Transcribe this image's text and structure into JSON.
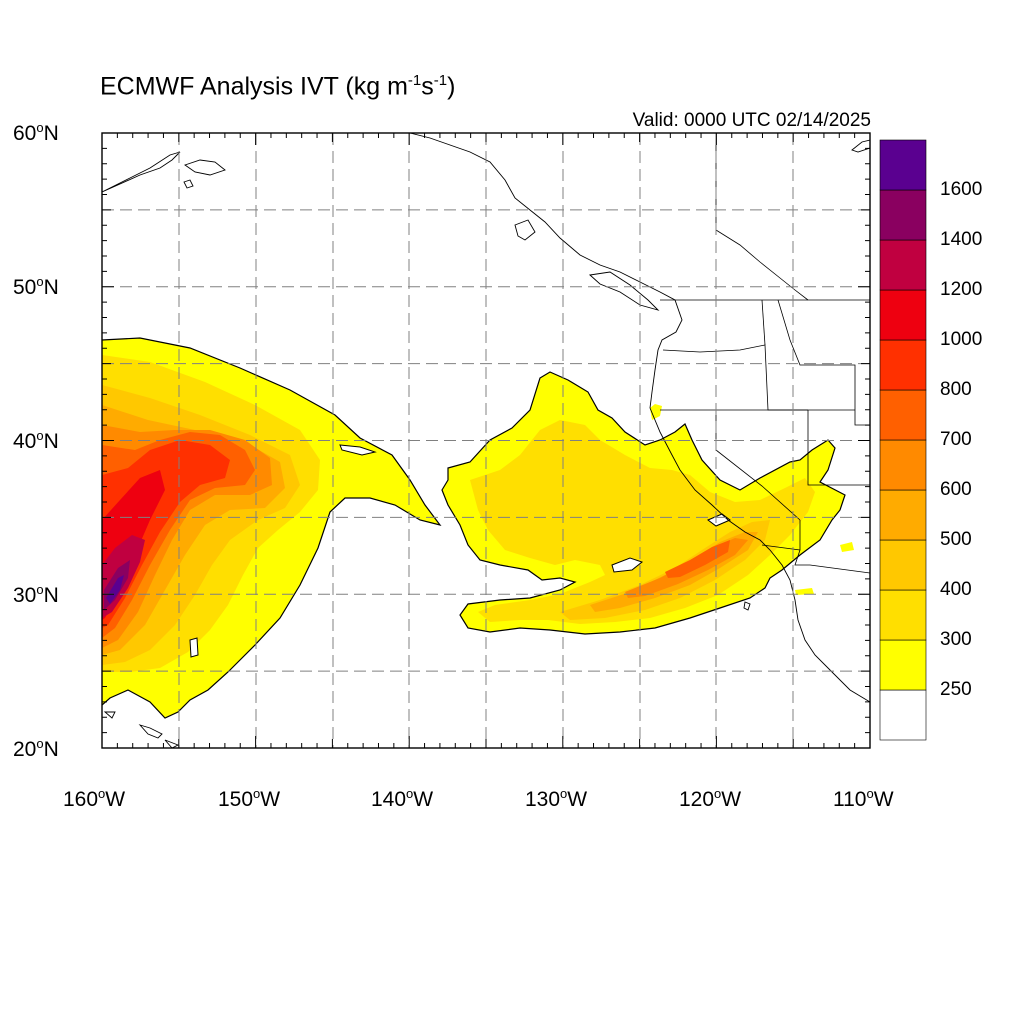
{
  "title": {
    "main": "ECMWF Analysis IVT (kg m",
    "exp1": "-1",
    "mid": "s",
    "exp2": "-1",
    "end": ")"
  },
  "valid_time": "Valid: 0000 UTC 02/14/2025",
  "axes": {
    "lat_labels": [
      {
        "base": "60",
        "sup": "o",
        "suffix": "N"
      },
      {
        "base": "50",
        "sup": "o",
        "suffix": "N"
      },
      {
        "base": "40",
        "sup": "o",
        "suffix": "N"
      },
      {
        "base": "30",
        "sup": "o",
        "suffix": "N"
      },
      {
        "base": "20",
        "sup": "o",
        "suffix": "N"
      }
    ],
    "lon_labels": [
      {
        "base": "160",
        "sup": "o",
        "suffix": "W"
      },
      {
        "base": "150",
        "sup": "o",
        "suffix": "W"
      },
      {
        "base": "140",
        "sup": "o",
        "suffix": "W"
      },
      {
        "base": "130",
        "sup": "o",
        "suffix": "W"
      },
      {
        "base": "120",
        "sup": "o",
        "suffix": "W"
      },
      {
        "base": "110",
        "sup": "o",
        "suffix": "W"
      }
    ]
  },
  "colorbar": {
    "labels": [
      "1600",
      "1400",
      "1200",
      "1000",
      "800",
      "700",
      "600",
      "500",
      "400",
      "300",
      "250"
    ],
    "colors_bottom_to_top": [
      "#ffffff",
      "#ffff00",
      "#ffdf00",
      "#ffc800",
      "#ffab00",
      "#ff8a00",
      "#ff6000",
      "#ff3000",
      "#ee0010",
      "#c00040",
      "#8a0060",
      "#5a0090"
    ]
  }
}
